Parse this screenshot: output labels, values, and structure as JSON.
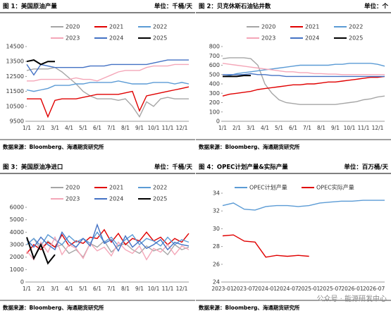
{
  "chart_data": [
    {
      "type": "line",
      "title": "图 1：美国原油产量",
      "unit": "单位：千桶/天",
      "source": "数据来源：Bloomberg、海通期货研究所",
      "categories": [
        "1/1",
        null,
        "2/1",
        null,
        "3/1",
        null,
        "4/1",
        null,
        "5/1",
        null,
        "6/1",
        null,
        "7/1",
        null,
        "8/1",
        null,
        "9/1",
        null,
        "10/1",
        null,
        "11/1",
        null,
        "12/1",
        null
      ],
      "ylim": [
        9500,
        14500
      ],
      "yticks": [
        9500,
        10500,
        11500,
        12500,
        13500,
        14500
      ],
      "legend": "top",
      "series": [
        {
          "name": "2020",
          "color": "#a6a6a6",
          "values": [
            12900,
            13000,
            13000,
            13000,
            13100,
            12800,
            12400,
            12000,
            11500,
            11200,
            11000,
            11000,
            11000,
            10900,
            11000,
            10500,
            9800,
            10800,
            10500,
            11000,
            11100,
            11000,
            11000,
            11000
          ]
        },
        {
          "name": "2021",
          "color": "#e00000",
          "values": [
            11000,
            11000,
            11000,
            9800,
            10900,
            11000,
            11000,
            11000,
            11100,
            11200,
            11300,
            11300,
            11300,
            11300,
            11400,
            11500,
            10200,
            11200,
            11300,
            11400,
            11500,
            11600,
            11700,
            11800
          ]
        },
        {
          "name": "2022",
          "color": "#5b9bd5",
          "values": [
            11600,
            11500,
            11600,
            11700,
            11900,
            11900,
            11900,
            12000,
            12000,
            12100,
            12100,
            12100,
            12100,
            12200,
            12100,
            12000,
            12000,
            12000,
            12100,
            12100,
            12100,
            12000,
            12100,
            12000
          ]
        },
        {
          "name": "2023",
          "color": "#f4a6b8",
          "values": [
            12200,
            12200,
            12300,
            12300,
            12300,
            12300,
            12300,
            12400,
            12300,
            12300,
            12200,
            12400,
            12600,
            12800,
            12900,
            12900,
            12900,
            13100,
            13200,
            13200,
            13200,
            13300,
            13300,
            13300
          ]
        },
        {
          "name": "2024",
          "color": "#4472c4",
          "values": [
            13300,
            12600,
            13300,
            13200,
            13100,
            13100,
            13100,
            13100,
            13100,
            13200,
            13200,
            13200,
            13300,
            13300,
            13300,
            13300,
            13300,
            13300,
            13400,
            13500,
            13600,
            13600,
            13600,
            13600
          ]
        },
        {
          "name": "2025",
          "color": "#000000",
          "values": [
            13500,
            13600,
            13300,
            13500,
            13500,
            null,
            null,
            null,
            null,
            null,
            null,
            null,
            null,
            null,
            null,
            null,
            null,
            null,
            null,
            null,
            null,
            null,
            null,
            null
          ]
        }
      ]
    },
    {
      "type": "line",
      "title": "图 2：贝克休斯石油钻井数",
      "unit": "单位：个",
      "source": "数据来源：Bloomberg、海通期货研究所",
      "categories": [
        "1/1",
        null,
        "2/1",
        null,
        "3/1",
        null,
        "4/1",
        null,
        "5/1",
        null,
        "6/1",
        null,
        "7/1",
        null,
        "8/1",
        null,
        "9/1",
        null,
        "10/1",
        null,
        "11/1",
        null,
        "12/1",
        null
      ],
      "ylim": [
        0,
        800
      ],
      "yticks": [
        0,
        100,
        200,
        300,
        400,
        500,
        600,
        700,
        800
      ],
      "legend": "top",
      "series": [
        {
          "name": "2020",
          "color": "#a6a6a6",
          "values": [
            670,
            680,
            680,
            680,
            670,
            600,
            400,
            300,
            230,
            200,
            190,
            180,
            180,
            180,
            180,
            180,
            180,
            190,
            200,
            210,
            230,
            240,
            260,
            270
          ]
        },
        {
          "name": "2021",
          "color": "#e00000",
          "values": [
            270,
            290,
            300,
            310,
            320,
            340,
            350,
            360,
            370,
            380,
            390,
            390,
            400,
            400,
            410,
            420,
            420,
            430,
            440,
            450,
            460,
            470,
            470,
            480
          ]
        },
        {
          "name": "2022",
          "color": "#5b9bd5",
          "values": [
            480,
            490,
            510,
            520,
            530,
            540,
            550,
            560,
            570,
            580,
            590,
            600,
            600,
            600,
            600,
            600,
            610,
            610,
            620,
            620,
            620,
            620,
            610,
            590
          ]
        },
        {
          "name": "2023",
          "color": "#f4a6b8",
          "values": [
            620,
            610,
            600,
            590,
            580,
            570,
            560,
            550,
            540,
            530,
            530,
            520,
            520,
            510,
            510,
            505,
            505,
            500,
            500,
            500,
            500,
            500,
            500,
            500
          ]
        },
        {
          "name": "2024",
          "color": "#4472c4",
          "values": [
            500,
            500,
            500,
            500,
            510,
            500,
            500,
            490,
            490,
            480,
            480,
            480,
            480,
            480,
            480,
            480,
            480,
            480,
            480,
            480,
            480,
            480,
            480,
            480
          ]
        },
        {
          "name": "2025",
          "color": "#000000",
          "values": [
            480,
            480,
            480,
            490,
            490,
            null,
            null,
            null,
            null,
            null,
            null,
            null,
            null,
            null,
            null,
            null,
            null,
            null,
            null,
            null,
            null,
            null,
            null,
            null
          ]
        }
      ]
    },
    {
      "type": "line",
      "title": "图 3：美国原油净进口",
      "unit": "单位：千桶/天",
      "source": "数据来源：Bloomberg、海通期货研究所",
      "categories": [
        "1/1",
        null,
        "2/1",
        null,
        "3/1",
        null,
        "4/1",
        null,
        "5/1",
        null,
        "6/1",
        null,
        "7/1",
        null,
        "8/1",
        null,
        "9/1",
        null,
        "10/1",
        null,
        "11/1",
        null,
        "12/1",
        null
      ],
      "ylim": [
        0,
        6000
      ],
      "yticks": [
        0,
        1000,
        2000,
        3000,
        4000,
        5000,
        6000
      ],
      "legend": "top",
      "series": [
        {
          "name": "2020",
          "color": "#a6a6a6",
          "values": [
            3000,
            3500,
            2600,
            3300,
            2800,
            3000,
            2300,
            2600,
            2000,
            3100,
            2800,
            3300,
            2400,
            2900,
            3100,
            2600,
            2300,
            2900,
            2500,
            2700,
            2200,
            3000,
            2600,
            2800
          ]
        },
        {
          "name": "2021",
          "color": "#e00000",
          "values": [
            2300,
            3000,
            2600,
            3200,
            2800,
            3800,
            2900,
            3300,
            3100,
            3600,
            3500,
            4200,
            3200,
            3900,
            3000,
            3500,
            3300,
            4000,
            3300,
            3600,
            3000,
            3500,
            3200,
            3900
          ]
        },
        {
          "name": "2022",
          "color": "#5b9bd5",
          "values": [
            3000,
            3500,
            2900,
            3800,
            3400,
            3000,
            3700,
            3200,
            3500,
            3100,
            4000,
            3200,
            3600,
            2900,
            3400,
            3800,
            3000,
            3500,
            3300,
            2900,
            3600,
            3000,
            3400,
            3200
          ]
        },
        {
          "name": "2023",
          "color": "#f4a6b8",
          "values": [
            2500,
            1800,
            3200,
            2400,
            3600,
            2200,
            3000,
            2700,
            1900,
            3100,
            2500,
            2800,
            2100,
            3200,
            2600,
            2300,
            2900,
            1800,
            2700,
            2400,
            3000,
            2200,
            2900,
            2600
          ]
        },
        {
          "name": "2024",
          "color": "#4472c4",
          "values": [
            3400,
            2800,
            3600,
            3000,
            2600,
            4000,
            3200,
            2800,
            3500,
            2900,
            4600,
            3100,
            3400,
            2500,
            3700,
            2800,
            3300,
            2700,
            3000,
            3400,
            2600,
            3200,
            3000,
            2900
          ]
        },
        {
          "name": "2025",
          "color": "#000000",
          "values": [
            3600,
            1900,
            3000,
            1500,
            2200,
            null,
            null,
            null,
            null,
            null,
            null,
            null,
            null,
            null,
            null,
            null,
            null,
            null,
            null,
            null,
            null,
            null,
            null,
            null
          ]
        }
      ]
    },
    {
      "type": "line",
      "title": "图 4：OPEC计划产量&实际产量",
      "unit": "单位：百万桶/天",
      "source": "数据来源：Bloomberg、海通期货研究所",
      "watermark": "公众号 · 能源研发中心",
      "categories": [
        "2023-01",
        null,
        "2023-07",
        null,
        "2024-01",
        null,
        "2024-07",
        null,
        "2025-01",
        null,
        "2025-07",
        null,
        "2026-01",
        null,
        "2026-07",
        null
      ],
      "ylim": [
        24,
        34
      ],
      "yticks": [
        24,
        26,
        28,
        30,
        32,
        34
      ],
      "legend": "top",
      "series": [
        {
          "name": "OPEC计划产量",
          "color": "#5b9bd5",
          "values": [
            32.6,
            32.9,
            32.2,
            32.1,
            32.5,
            32.6,
            32.6,
            32.5,
            32.6,
            32.9,
            33.0,
            33.1,
            33.1,
            33.2,
            33.2,
            33.2
          ]
        },
        {
          "name": "OPEC实际产量",
          "color": "#e00000",
          "values": [
            29.2,
            29.3,
            28.6,
            28.5,
            26.8,
            27.0,
            26.9,
            27.0,
            26.9,
            null,
            null,
            null,
            null,
            null,
            null,
            null
          ]
        }
      ]
    }
  ]
}
